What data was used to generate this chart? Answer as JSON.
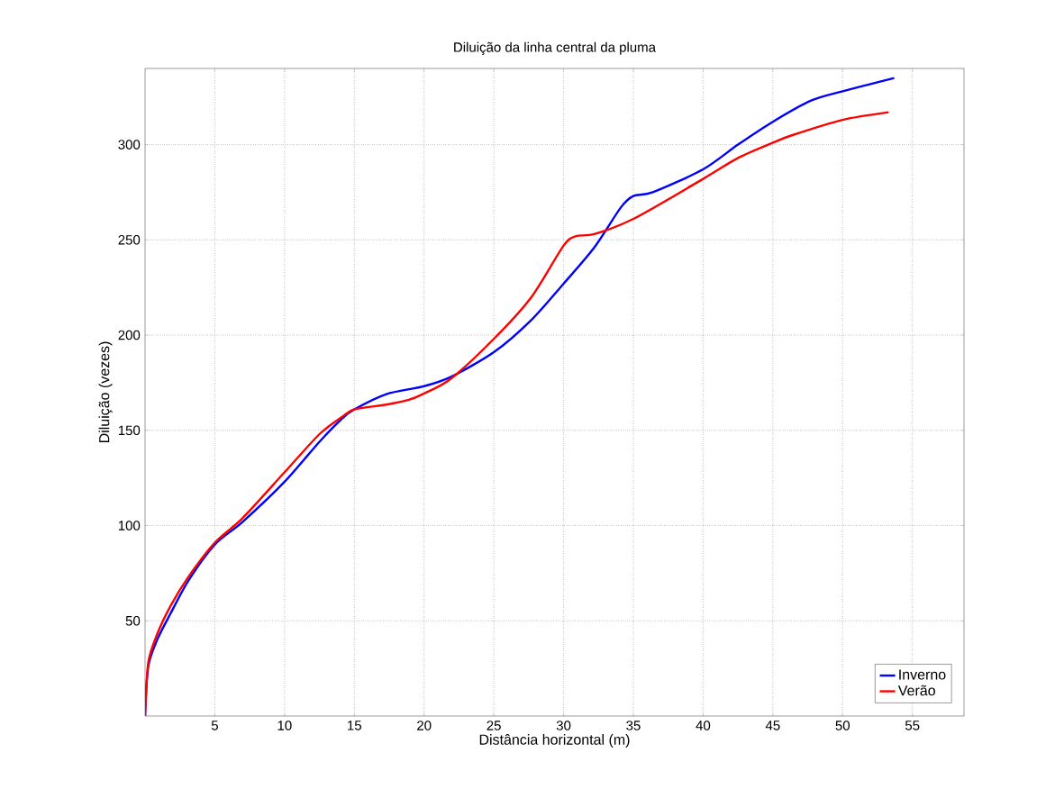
{
  "chart_data": {
    "type": "line",
    "title": "Diluição da linha central da pluma",
    "xlabel": "Distância horizontal (m)",
    "ylabel": "Diluição (vezes)",
    "xlim": [
      0,
      58.7
    ],
    "ylim": [
      0,
      340
    ],
    "xticks": [
      5,
      10,
      15,
      20,
      25,
      30,
      35,
      40,
      45,
      50,
      55
    ],
    "yticks": [
      50,
      100,
      150,
      200,
      250,
      300
    ],
    "grid": true,
    "legend": "bottom right",
    "line_style": "solid",
    "series": [
      {
        "name": "Inverno",
        "color": "#0000ff",
        "x": [
          0,
          0.23,
          0.87,
          1.84,
          3.1,
          5,
          7,
          10,
          12.5,
          14.1,
          15,
          17.3,
          19.9,
          21.9,
          25,
          27.7,
          30,
          32.2,
          34.1,
          35,
          36.4,
          40,
          42.5,
          45,
          47.7,
          50,
          53.7
        ],
        "values": [
          0,
          26,
          40,
          54,
          71,
          90,
          102,
          123,
          144,
          156,
          161,
          169,
          173,
          178,
          191,
          208,
          227,
          246,
          267,
          273,
          275,
          287,
          300,
          312,
          323,
          328,
          335
        ]
      },
      {
        "name": "Verão",
        "color": "#ff0000",
        "x": [
          0,
          0.23,
          0.87,
          1.84,
          3.1,
          5,
          7,
          10,
          12.5,
          14.1,
          15,
          17.3,
          18.9,
          19.9,
          21.9,
          25,
          27.7,
          30,
          30.9,
          32.2,
          35,
          40,
          42.5,
          45,
          46.4,
          50,
          53.3
        ],
        "values": [
          0,
          28,
          43,
          58,
          73,
          91,
          104,
          128,
          148,
          157,
          161,
          163.5,
          166,
          169,
          177,
          198,
          220,
          247,
          252,
          253,
          261,
          282,
          293,
          301,
          305,
          313,
          317
        ]
      }
    ]
  }
}
